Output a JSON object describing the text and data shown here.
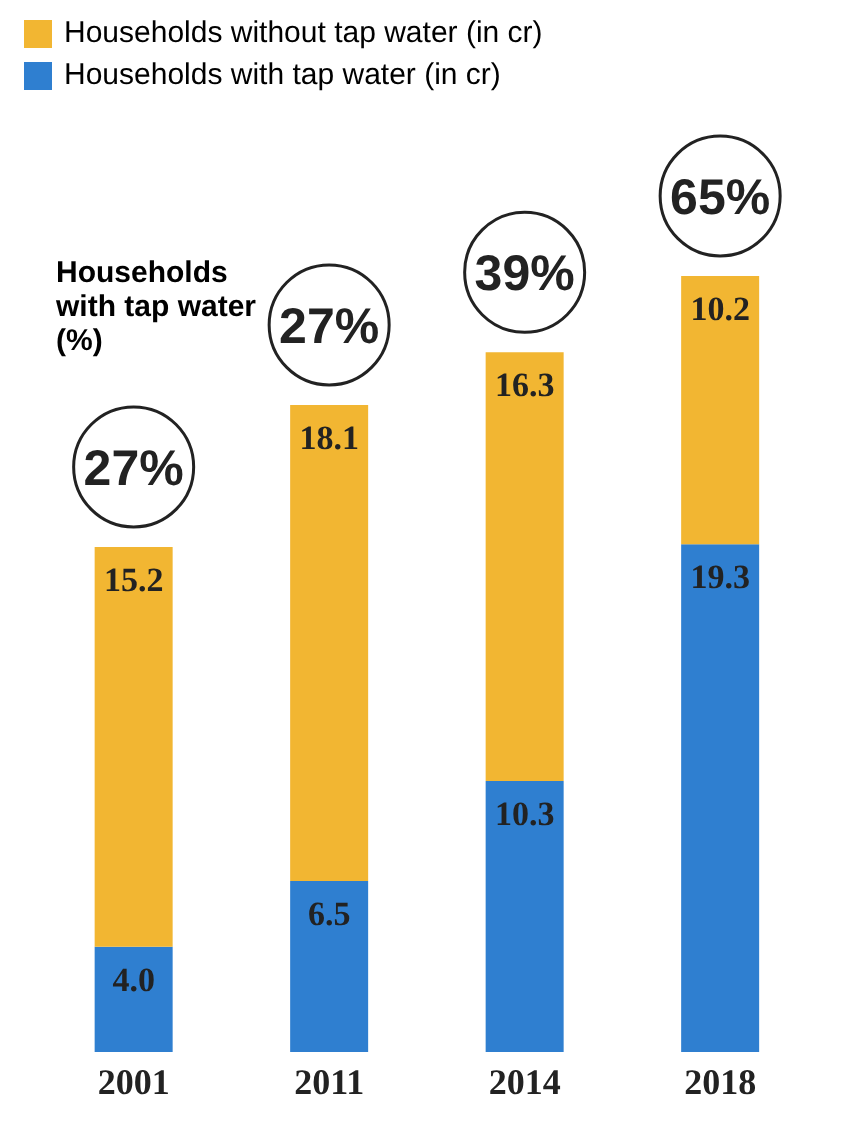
{
  "chart_data": {
    "type": "bar",
    "stacked": true,
    "categories": [
      "2001",
      "2011",
      "2014",
      "2018"
    ],
    "series": [
      {
        "name": "Households with tap water (in cr)",
        "color": "#2f7fd0",
        "values": [
          4.0,
          6.5,
          10.3,
          19.3
        ],
        "value_labels": [
          "4.0",
          "6.5",
          "10.3",
          "19.3"
        ]
      },
      {
        "name": "Households without tap water (in cr)",
        "color": "#f2b632",
        "values": [
          15.2,
          18.1,
          16.3,
          10.2
        ],
        "value_labels": [
          "15.2",
          "18.1",
          "16.3",
          "10.2"
        ]
      }
    ],
    "legend": "top left",
    "annotations": [
      "Households with tap water (%)",
      "27%",
      "27%",
      "39%",
      "65%"
    ]
  }
}
